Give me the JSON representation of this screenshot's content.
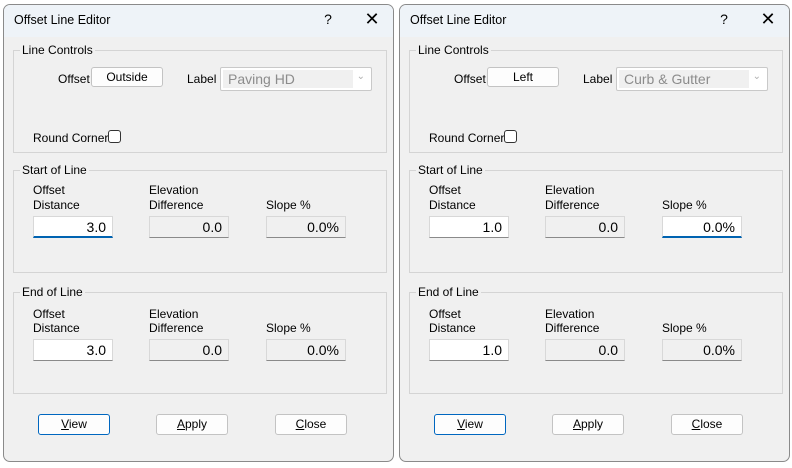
{
  "dialogs": [
    {
      "title": "Offset Line Editor",
      "help": "?",
      "close": "✕",
      "line_controls": {
        "group": "Line Controls",
        "offset_label": "Offset",
        "offset_value": "Outside",
        "label_label": "Label",
        "label_value": "Paving HD",
        "round_corners": "Round Corners",
        "round_corners_checked": false
      },
      "start": {
        "group": "Start of Line",
        "offset_label_1": "Offset",
        "offset_label_2": "Distance",
        "elev_label_1": "Elevation",
        "elev_label_2": "Difference",
        "slope_label": "Slope %",
        "offset": "3.0",
        "elev": "0.0",
        "slope": "0.0%"
      },
      "end": {
        "group": "End of Line",
        "offset_label_1": "Offset",
        "offset_label_2": "Distance",
        "elev_label_1": "Elevation",
        "elev_label_2": "Difference",
        "slope_label": "Slope %",
        "offset": "3.0",
        "elev": "0.0",
        "slope": "0.0%"
      },
      "buttons": {
        "view_u": "V",
        "view_rest": "iew",
        "apply_u": "A",
        "apply_rest": "pply",
        "close_u": "C",
        "close_rest": "lose"
      }
    },
    {
      "title": "Offset Line Editor",
      "help": "?",
      "close": "✕",
      "line_controls": {
        "group": "Line Controls",
        "offset_label": "Offset",
        "offset_value": "Left",
        "label_label": "Label",
        "label_value": "Curb & Gutter",
        "round_corners": "Round Corners",
        "round_corners_checked": false
      },
      "start": {
        "group": "Start of Line",
        "offset_label_1": "Offset",
        "offset_label_2": "Distance",
        "elev_label_1": "Elevation",
        "elev_label_2": "Difference",
        "slope_label": "Slope %",
        "offset": "1.0",
        "elev": "0.0",
        "slope": "0.0%"
      },
      "end": {
        "group": "End of Line",
        "offset_label_1": "Offset",
        "offset_label_2": "Distance",
        "elev_label_1": "Elevation",
        "elev_label_2": "Difference",
        "slope_label": "Slope %",
        "offset": "1.0",
        "elev": "0.0",
        "slope": "0.0%"
      },
      "buttons": {
        "view_u": "V",
        "view_rest": "iew",
        "apply_u": "A",
        "apply_rest": "pply",
        "close_u": "C",
        "close_rest": "lose"
      }
    }
  ]
}
